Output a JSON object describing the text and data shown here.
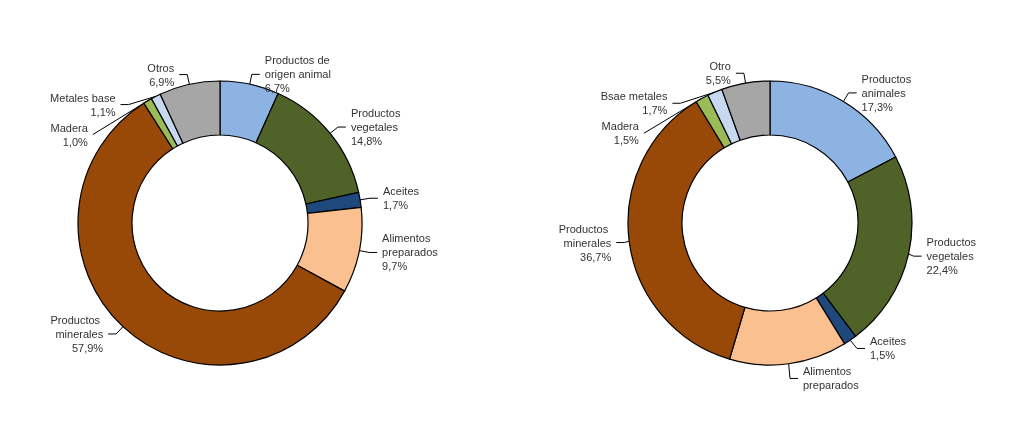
{
  "chart_data": [
    {
      "type": "donut",
      "categories": [
        "Productos de origen animal",
        "Productos vegetales",
        "Aceites",
        "Alimentos preparados",
        "Productos minerales",
        "Madera",
        "Metales base",
        "Otros"
      ],
      "values": [
        6.7,
        14.8,
        1.7,
        9.7,
        57.9,
        1.0,
        1.1,
        6.9
      ],
      "value_labels": [
        "6,7%",
        "14,8%",
        "1,7%",
        "9,7%",
        "57,9%",
        "1,0%",
        "1,1%",
        "6,9%"
      ],
      "colors": [
        "#8db3e2",
        "#4f6228",
        "#1f497d",
        "#fac090",
        "#984807",
        "#9bbb59",
        "#c6d9f1",
        "#a6a6a6"
      ],
      "legend": false
    },
    {
      "type": "donut",
      "categories": [
        "Productos animales",
        "Productos vegetales",
        "Aceites",
        "Alimentos preparados",
        "Productos minerales",
        "Madera",
        "Bsae metales",
        "Otro"
      ],
      "values": [
        17.3,
        22.4,
        1.5,
        13.4,
        36.7,
        1.5,
        1.7,
        5.5
      ],
      "value_labels": [
        "17,3%",
        "22,4%",
        "1,5%",
        null,
        "36,7%",
        "1,5%",
        "1,7%",
        "5,5%"
      ],
      "colors": [
        "#8db3e2",
        "#4f6228",
        "#1f497d",
        "#fac090",
        "#984807",
        "#9bbb59",
        "#c6d9f1",
        "#a6a6a6"
      ],
      "legend": false
    }
  ]
}
